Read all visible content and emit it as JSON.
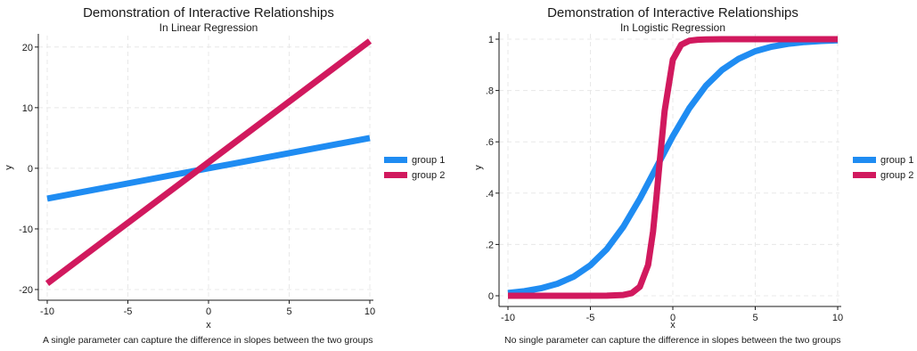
{
  "chart_data": [
    {
      "type": "line",
      "title": "Demonstration of Interactive Relationships",
      "subtitle": "In Linear Regression",
      "xlabel": "x",
      "ylabel": "y",
      "note": "A single parameter can capture the difference in slopes between the two groups",
      "xlim": [
        -10,
        10
      ],
      "ylim": [
        -20,
        21
      ],
      "xticks": [
        -10,
        -5,
        0,
        5,
        10
      ],
      "yticks": [
        -20,
        -10,
        0,
        10,
        20
      ],
      "ytick_labels": [
        "-20",
        "-10",
        "0",
        "10",
        "20"
      ],
      "grid": true,
      "legend_position": "right",
      "series": [
        {
          "name": "group 1",
          "color": "#1f8cf2",
          "x": [
            -10,
            10
          ],
          "y": [
            -5,
            5
          ]
        },
        {
          "name": "group 2",
          "color": "#d1195e",
          "x": [
            -10,
            10
          ],
          "y": [
            -19,
            21
          ]
        }
      ]
    },
    {
      "type": "line",
      "title": "Demonstration of Interactive Relationships",
      "subtitle": "In Logistic Regression",
      "xlabel": "x",
      "ylabel": "y",
      "note": "No single parameter can capture the difference in slopes between the two groups",
      "xlim": [
        -10,
        10
      ],
      "ylim": [
        0,
        1
      ],
      "xticks": [
        -10,
        -5,
        0,
        5,
        10
      ],
      "yticks": [
        0,
        0.2,
        0.4,
        0.6,
        0.8,
        1
      ],
      "ytick_labels": [
        "0",
        ".2",
        ".4",
        ".6",
        ".8",
        "1"
      ],
      "grid": true,
      "legend_position": "right",
      "series": [
        {
          "name": "group 1",
          "color": "#1f8cf2",
          "x": [
            -10,
            -9,
            -8,
            -7,
            -6,
            -5,
            -4,
            -3,
            -2,
            -1,
            0,
            1,
            2,
            3,
            4,
            5,
            6,
            7,
            8,
            9,
            10
          ],
          "y": [
            0.011,
            0.018,
            0.029,
            0.047,
            0.075,
            0.119,
            0.182,
            0.269,
            0.378,
            0.5,
            0.622,
            0.731,
            0.818,
            0.881,
            0.924,
            0.953,
            0.971,
            0.982,
            0.989,
            0.993,
            0.996
          ]
        },
        {
          "name": "group 2",
          "color": "#d1195e",
          "x": [
            -10,
            -6,
            -4,
            -3,
            -2.5,
            -2,
            -1.5,
            -1.2,
            -1,
            -0.8,
            -0.5,
            0,
            0.5,
            1,
            1.5,
            2,
            3,
            4,
            6,
            10
          ],
          "y": [
            0,
            0,
            0.0005,
            0.003,
            0.01,
            0.035,
            0.12,
            0.25,
            0.38,
            0.52,
            0.72,
            0.92,
            0.978,
            0.994,
            0.998,
            0.999,
            1,
            1,
            1,
            1
          ]
        }
      ]
    }
  ]
}
